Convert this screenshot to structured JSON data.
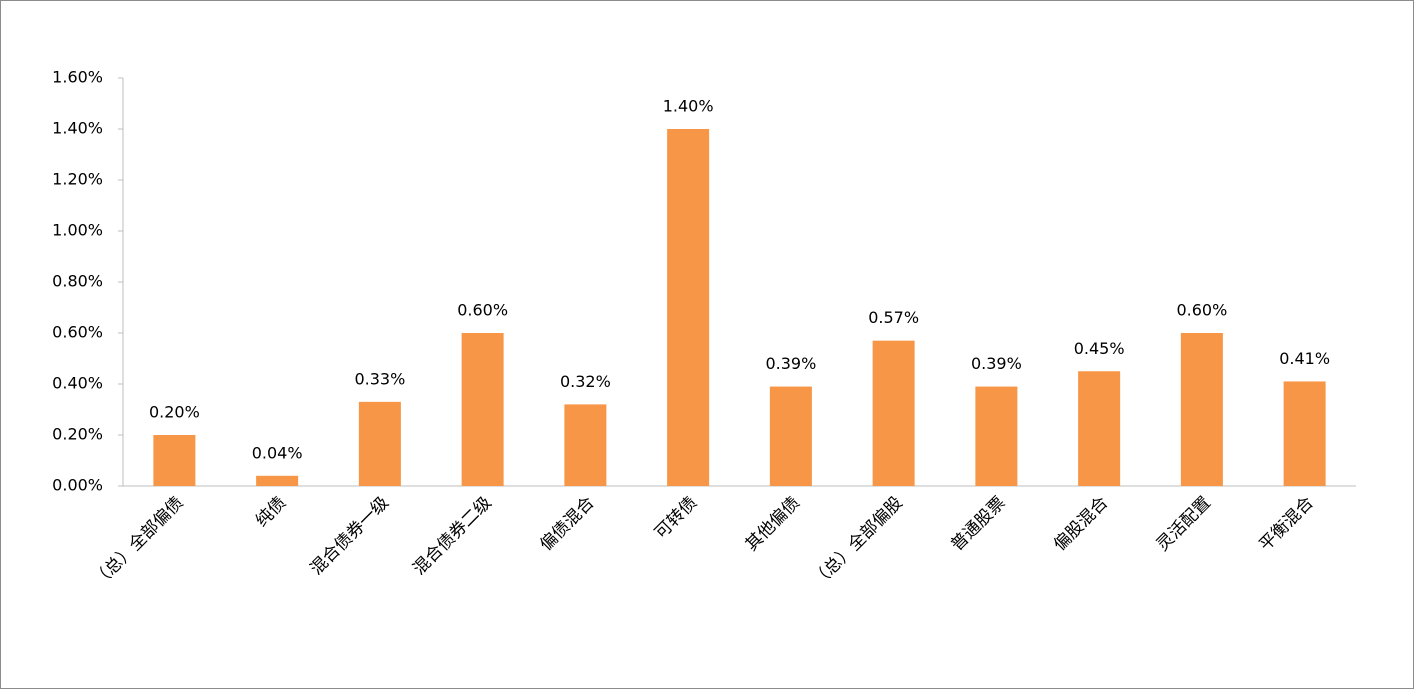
{
  "chart_data": {
    "type": "bar",
    "categories": [
      "（总）全部偏债",
      "纯债",
      "混合债券一级",
      "混合债券二级",
      "偏债混合",
      "可转债",
      "其他偏债",
      "（总）全部偏股",
      "普通股票",
      "偏股混合",
      "灵活配置",
      "平衡混合"
    ],
    "values": [
      0.2,
      0.04,
      0.33,
      0.6,
      0.32,
      1.4,
      0.39,
      0.57,
      0.39,
      0.45,
      0.6,
      0.41
    ],
    "value_labels": [
      "0.20%",
      "0.04%",
      "0.33%",
      "0.60%",
      "0.32%",
      "1.40%",
      "0.39%",
      "0.57%",
      "0.39%",
      "0.45%",
      "0.60%",
      "0.41%"
    ],
    "color": "#f79646",
    "ylim": [
      0,
      1.6
    ],
    "yticks": [
      {
        "value": 0,
        "label": "0.00%"
      },
      {
        "value": 0.2,
        "label": "0.20%"
      },
      {
        "value": 0.4,
        "label": "0.40%"
      },
      {
        "value": 0.6,
        "label": "0.60%"
      },
      {
        "value": 0.8,
        "label": "0.80%"
      },
      {
        "value": 1.0,
        "label": "1.00%"
      },
      {
        "value": 1.2,
        "label": "1.20%"
      },
      {
        "value": 1.4,
        "label": "1.40%"
      },
      {
        "value": 1.6,
        "label": "1.60%"
      }
    ],
    "grid": false
  }
}
